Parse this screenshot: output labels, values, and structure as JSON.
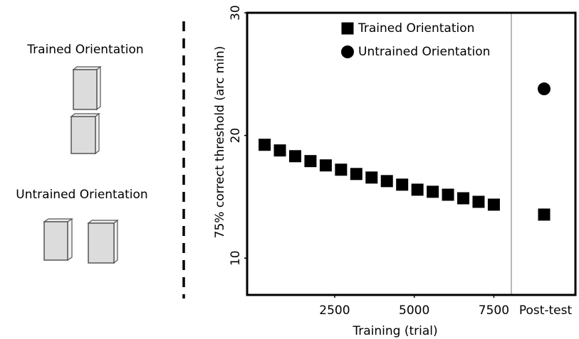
{
  "diagram": {
    "trained_label": "Trained Orientation",
    "untrained_label": "Untrained Orientation"
  },
  "chart_data": {
    "type": "scatter",
    "y_label": "75% correct threshold (arc min)",
    "x_label": "Training (trial)",
    "post_test_label": "Post-test",
    "xlim": [
      -250,
      8050
    ],
    "xticks": [
      2500,
      5000,
      7500
    ],
    "ylim": [
      7,
      30
    ],
    "yticks": [
      10,
      20,
      30
    ],
    "series": [
      {
        "name": "Trained Orientation",
        "marker": "square",
        "color": "#000000",
        "x": [
          300,
          780,
          1260,
          1740,
          2220,
          2700,
          3180,
          3660,
          4140,
          4620,
          5100,
          5580,
          6060,
          6540,
          7020,
          7500
        ],
        "values": [
          19.24,
          18.78,
          18.31,
          17.91,
          17.56,
          17.21,
          16.86,
          16.57,
          16.28,
          15.99,
          15.58,
          15.41,
          15.17,
          14.88,
          14.59,
          14.36
        ],
        "post_test": 13.55
      },
      {
        "name": "Untrained Orientation",
        "marker": "circle",
        "color": "#000000",
        "post_test": 23.8
      }
    ]
  }
}
